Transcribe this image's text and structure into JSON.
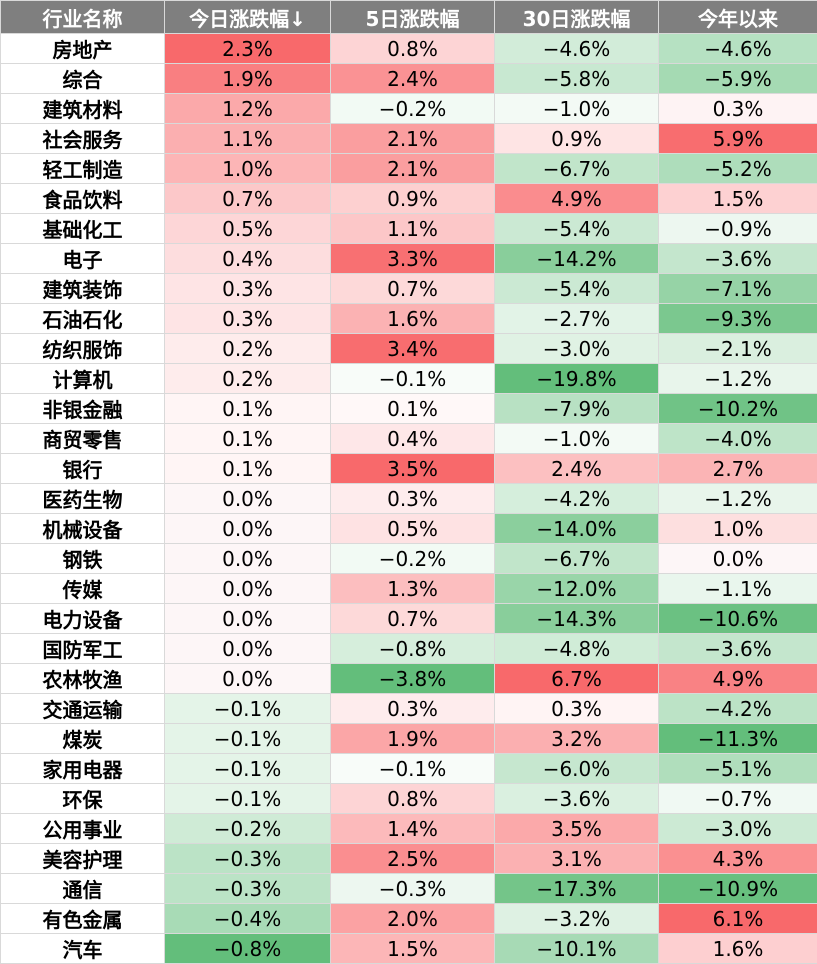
{
  "chart_data": {
    "type": "table",
    "columns": [
      "行业名称",
      "今日涨跌幅↓",
      "5日涨跌幅",
      "30日涨跌幅",
      "今年以来"
    ],
    "rows": [
      [
        "房地产",
        "2.3%",
        "0.8%",
        "−4.6%",
        "−4.6%"
      ],
      [
        "综合",
        "1.9%",
        "2.4%",
        "−5.8%",
        "−5.9%"
      ],
      [
        "建筑材料",
        "1.2%",
        "−0.2%",
        "−1.0%",
        "0.3%"
      ],
      [
        "社会服务",
        "1.1%",
        "2.1%",
        "0.9%",
        "5.9%"
      ],
      [
        "轻工制造",
        "1.0%",
        "2.1%",
        "−6.7%",
        "−5.2%"
      ],
      [
        "食品饮料",
        "0.7%",
        "0.9%",
        "4.9%",
        "1.5%"
      ],
      [
        "基础化工",
        "0.5%",
        "1.1%",
        "−5.4%",
        "−0.9%"
      ],
      [
        "电子",
        "0.4%",
        "3.3%",
        "−14.2%",
        "−3.6%"
      ],
      [
        "建筑装饰",
        "0.3%",
        "0.7%",
        "−5.4%",
        "−7.1%"
      ],
      [
        "石油石化",
        "0.3%",
        "1.6%",
        "−2.7%",
        "−9.3%"
      ],
      [
        "纺织服饰",
        "0.2%",
        "3.4%",
        "−3.0%",
        "−2.1%"
      ],
      [
        "计算机",
        "0.2%",
        "−0.1%",
        "−19.8%",
        "−1.2%"
      ],
      [
        "非银金融",
        "0.1%",
        "0.1%",
        "−7.9%",
        "−10.2%"
      ],
      [
        "商贸零售",
        "0.1%",
        "0.4%",
        "−1.0%",
        "−4.0%"
      ],
      [
        "银行",
        "0.1%",
        "3.5%",
        "2.4%",
        "2.7%"
      ],
      [
        "医药生物",
        "0.0%",
        "0.3%",
        "−4.2%",
        "−1.2%"
      ],
      [
        "机械设备",
        "0.0%",
        "0.5%",
        "−14.0%",
        "1.0%"
      ],
      [
        "钢铁",
        "0.0%",
        "−0.2%",
        "−6.7%",
        "0.0%"
      ],
      [
        "传媒",
        "0.0%",
        "1.3%",
        "−12.0%",
        "−1.1%"
      ],
      [
        "电力设备",
        "0.0%",
        "0.7%",
        "−14.3%",
        "−10.6%"
      ],
      [
        "国防军工",
        "0.0%",
        "−0.8%",
        "−4.8%",
        "−3.6%"
      ],
      [
        "农林牧渔",
        "0.0%",
        "−3.8%",
        "6.7%",
        "4.9%"
      ],
      [
        "交通运输",
        "−0.1%",
        "0.3%",
        "0.3%",
        "−4.2%"
      ],
      [
        "煤炭",
        "−0.1%",
        "1.9%",
        "3.2%",
        "−11.3%"
      ],
      [
        "家用电器",
        "−0.1%",
        "−0.1%",
        "−6.0%",
        "−5.1%"
      ],
      [
        "环保",
        "−0.1%",
        "0.8%",
        "−3.6%",
        "−0.7%"
      ],
      [
        "公用事业",
        "−0.2%",
        "1.4%",
        "3.5%",
        "−3.0%"
      ],
      [
        "美容护理",
        "−0.3%",
        "2.5%",
        "3.1%",
        "4.3%"
      ],
      [
        "通信",
        "−0.3%",
        "−0.3%",
        "−17.3%",
        "−10.9%"
      ],
      [
        "有色金属",
        "−0.4%",
        "2.0%",
        "−3.2%",
        "6.1%"
      ],
      [
        "汽车",
        "−0.8%",
        "1.5%",
        "−10.1%",
        "1.6%"
      ]
    ],
    "color_scale": {
      "negative": "#63be7b",
      "neutral": "#ffffff",
      "positive": "#f8696b"
    },
    "header_background": "#7f7f7f",
    "header_text_color": "#ffffff"
  }
}
